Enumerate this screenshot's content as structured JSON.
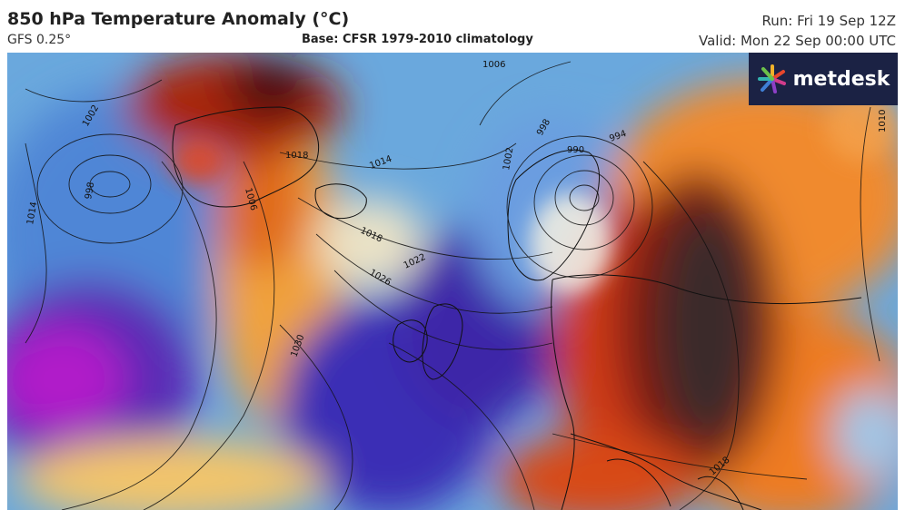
{
  "header": {
    "title": "850 hPa Temperature Anomaly (°C)",
    "model": "GFS 0.25°",
    "base": "Base: CFSR 1979-2010 climatology",
    "run": "Run: Fri 19 Sep 12Z",
    "valid": "Valid: Mon 22 Sep 00:00 UTC"
  },
  "logo": {
    "text": "metdesk",
    "icon": "metdesk-star-icon"
  },
  "isobar_labels": [
    "1002",
    "998",
    "1014",
    "1018",
    "1006",
    "1014",
    "1018",
    "1022",
    "1026",
    "1030",
    "1006",
    "998",
    "994",
    "990",
    "1002",
    "1018",
    "1010"
  ],
  "colors": {
    "deep_cold": "#8e0fb7",
    "cold": "#2a2fc0",
    "cool": "#5aa3dd",
    "neutral": "#e8eef5",
    "warm": "#f2a33a",
    "hot": "#c93410",
    "very_hot": "#5a0e07",
    "extreme": "#3a2a2a"
  }
}
